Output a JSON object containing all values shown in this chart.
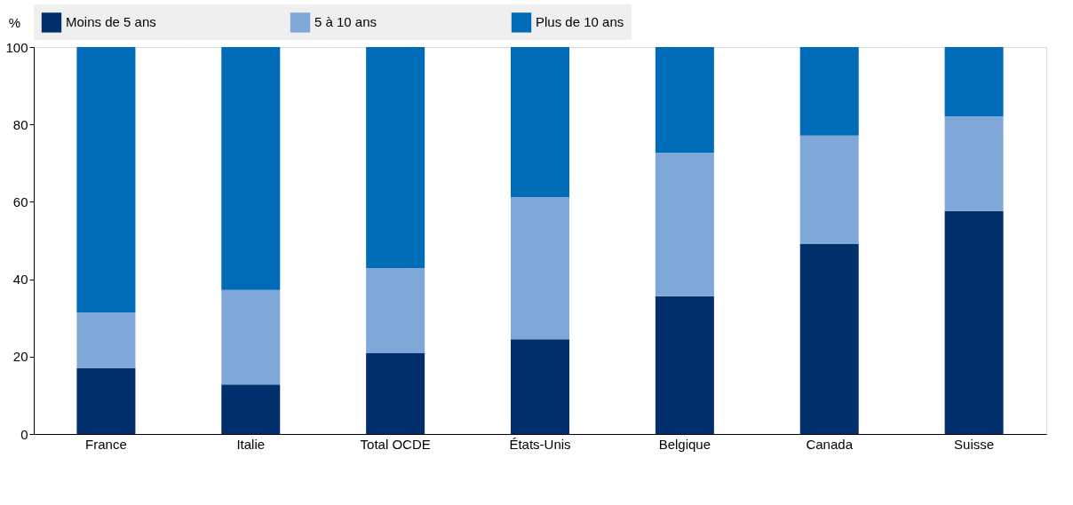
{
  "chart_data": {
    "type": "bar",
    "stacked": true,
    "ylabel": "%",
    "categories": [
      "France",
      "Italie",
      "Total OCDE",
      "États-Unis",
      "Belgique",
      "Canada",
      "Suisse"
    ],
    "series": [
      {
        "name": "Moins de 5 ans",
        "color": "#002f6c",
        "values": [
          17.0,
          12.8,
          20.9,
          24.5,
          35.6,
          49.1,
          57.6
        ]
      },
      {
        "name": "5 à 10 ans",
        "color": "#7fa8d9",
        "values": [
          14.4,
          24.4,
          22.0,
          36.7,
          37.1,
          28.0,
          24.5
        ]
      },
      {
        "name": "Plus de 10 ans",
        "color": "#006bb6",
        "values": [
          68.6,
          62.8,
          57.1,
          38.8,
          27.3,
          22.9,
          17.9
        ]
      }
    ],
    "ylim": [
      0,
      100
    ],
    "yticks": [
      0,
      20,
      40,
      60,
      80,
      100
    ],
    "grid": "x",
    "legend": "top"
  }
}
